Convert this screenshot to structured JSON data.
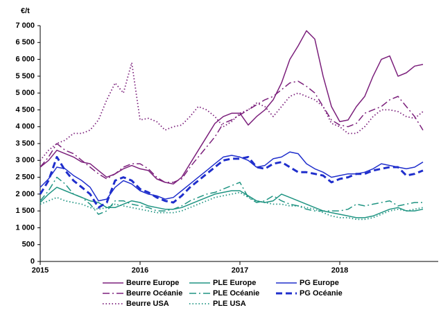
{
  "chart_data": {
    "type": "line",
    "y_unit": "€/t",
    "x": [
      2015,
      2015.083,
      2015.167,
      2015.25,
      2015.333,
      2015.417,
      2015.5,
      2015.583,
      2015.667,
      2015.75,
      2015.833,
      2015.917,
      2016,
      2016.083,
      2016.167,
      2016.25,
      2016.333,
      2016.417,
      2016.5,
      2016.583,
      2016.667,
      2016.75,
      2016.833,
      2016.917,
      2017,
      2017.083,
      2017.167,
      2017.25,
      2017.333,
      2017.417,
      2017.5,
      2017.583,
      2017.667,
      2017.75,
      2017.833,
      2017.917,
      2018,
      2018.083,
      2018.167,
      2018.25,
      2018.333,
      2018.417,
      2018.5,
      2018.583,
      2018.667,
      2018.75,
      2018.833
    ],
    "xlim": [
      2015,
      2019
    ],
    "xticks": [
      2015,
      2016,
      2017,
      2018
    ],
    "ylim": [
      0,
      7000
    ],
    "yticks": [
      0,
      500,
      {
        "value": 1000,
        "label": "1 000"
      },
      {
        "value": 1500,
        "label": "1 500"
      },
      {
        "value": 2000,
        "label": "2 000"
      },
      {
        "value": 2500,
        "label": "2 500"
      },
      {
        "value": 3000,
        "label": "3 000"
      },
      {
        "value": 3500,
        "label": "3 500"
      },
      {
        "value": 4000,
        "label": "4 000"
      },
      {
        "value": 4500,
        "label": "4 500"
      },
      {
        "value": 5000,
        "label": "5 000"
      },
      {
        "value": 5500,
        "label": "5 500"
      },
      {
        "value": 6000,
        "label": "6 000"
      },
      {
        "value": 6500,
        "label": "6 500"
      },
      {
        "value": 7000,
        "label": "7 000"
      }
    ],
    "series": [
      {
        "name": "Beurre Europe",
        "color": "#7b1f7b",
        "dash": "solid",
        "width": 1.5,
        "values": [
          2800,
          3000,
          3300,
          3200,
          3100,
          2950,
          2900,
          2700,
          2500,
          2600,
          2750,
          2850,
          2750,
          2700,
          2450,
          2350,
          2300,
          2500,
          2900,
          3300,
          3700,
          4100,
          4300,
          4400,
          4400,
          4050,
          4300,
          4500,
          4800,
          5300,
          6000,
          6400,
          6850,
          6600,
          5500,
          4600,
          4150,
          4200,
          4600,
          4900,
          5500,
          6000,
          6100,
          5500,
          5600,
          5800,
          5850
        ]
      },
      {
        "name": "PLE Europe",
        "color": "#1f9482",
        "dash": "solid",
        "width": 1.5,
        "values": [
          1750,
          2000,
          2200,
          2100,
          2000,
          1900,
          1800,
          1750,
          1600,
          1600,
          1700,
          1800,
          1750,
          1650,
          1600,
          1550,
          1550,
          1600,
          1700,
          1800,
          1900,
          2000,
          2050,
          2100,
          2100,
          1950,
          1800,
          1750,
          1800,
          2000,
          1900,
          1800,
          1700,
          1600,
          1500,
          1450,
          1400,
          1350,
          1300,
          1300,
          1350,
          1450,
          1550,
          1600,
          1500,
          1500,
          1550
        ]
      },
      {
        "name": "PG Europe",
        "color": "#1f2ecc",
        "dash": "solid",
        "width": 1.5,
        "values": [
          2200,
          2450,
          2800,
          2750,
          2550,
          2400,
          2200,
          1800,
          1850,
          2200,
          2400,
          2300,
          2100,
          2000,
          1950,
          1850,
          1900,
          2100,
          2300,
          2500,
          2700,
          2900,
          3100,
          3150,
          3100,
          3000,
          2800,
          2850,
          3050,
          3100,
          3250,
          3200,
          2900,
          2750,
          2650,
          2500,
          2550,
          2600,
          2600,
          2650,
          2750,
          2900,
          2850,
          2800,
          2750,
          2800,
          2950
        ]
      },
      {
        "name": "Beurre Océanie",
        "color": "#7b1f7b",
        "dash": "dashdot",
        "width": 1.5,
        "values": [
          2800,
          3100,
          3500,
          3300,
          3200,
          3000,
          2800,
          2600,
          2450,
          2600,
          2800,
          2900,
          2900,
          2750,
          2500,
          2350,
          2350,
          2450,
          2800,
          3100,
          3400,
          3700,
          4100,
          4200,
          4350,
          4500,
          4650,
          4800,
          4900,
          5100,
          5300,
          5350,
          5200,
          5000,
          4600,
          4200,
          4050,
          4000,
          4100,
          4400,
          4500,
          4600,
          4800,
          4900,
          4600,
          4300,
          3900
        ]
      },
      {
        "name": "PLE Océanie",
        "color": "#1f9482",
        "dash": "dashdot",
        "width": 1.5,
        "values": [
          1800,
          2100,
          2500,
          2300,
          2000,
          1900,
          1700,
          1400,
          1500,
          1800,
          1800,
          1700,
          1650,
          1600,
          1500,
          1500,
          1550,
          1650,
          1800,
          1900,
          2000,
          2050,
          2150,
          2250,
          2350,
          1900,
          1750,
          1800,
          1950,
          1800,
          1700,
          1650,
          1550,
          1500,
          1500,
          1500,
          1500,
          1550,
          1700,
          1650,
          1700,
          1750,
          1800,
          1650,
          1700,
          1750,
          1750
        ]
      },
      {
        "name": "PG Océanie",
        "color": "#1f2ecc",
        "dash": "dashed",
        "width": 3,
        "values": [
          2000,
          2400,
          3100,
          2700,
          2400,
          2200,
          2000,
          1600,
          1750,
          2400,
          2500,
          2400,
          2150,
          2050,
          1900,
          1800,
          1750,
          1950,
          2200,
          2400,
          2600,
          2800,
          3000,
          3050,
          3050,
          3100,
          2800,
          2750,
          2900,
          2950,
          2800,
          2650,
          2650,
          2600,
          2550,
          2350,
          2450,
          2500,
          2600,
          2600,
          2700,
          2750,
          2800,
          2800,
          2550,
          2600,
          2700
        ]
      },
      {
        "name": "Beurre USA",
        "color": "#7b1f7b",
        "dash": "dotted",
        "width": 1.8,
        "values": [
          3000,
          3300,
          3500,
          3600,
          3800,
          3800,
          3900,
          4200,
          4800,
          5300,
          5000,
          5900,
          4200,
          4250,
          4150,
          3900,
          4000,
          4050,
          4300,
          4600,
          4500,
          4300,
          4000,
          4150,
          4400,
          4500,
          4700,
          4600,
          4300,
          4600,
          4900,
          5000,
          4900,
          4800,
          4600,
          4100,
          4000,
          3800,
          3800,
          4000,
          4300,
          4500,
          4500,
          4450,
          4300,
          4250,
          4450
        ]
      },
      {
        "name": "PLE USA",
        "color": "#1f9482",
        "dash": "dotted",
        "width": 1.8,
        "values": [
          1700,
          1800,
          1900,
          1800,
          1750,
          1700,
          1600,
          1550,
          1600,
          1700,
          1650,
          1600,
          1550,
          1500,
          1450,
          1450,
          1450,
          1500,
          1600,
          1700,
          1800,
          1900,
          1950,
          2000,
          2050,
          1900,
          1800,
          1750,
          1700,
          1700,
          1650,
          1650,
          1600,
          1550,
          1450,
          1350,
          1300,
          1300,
          1250,
          1250,
          1300,
          1400,
          1500,
          1550,
          1500,
          1550,
          1600
        ]
      }
    ]
  }
}
